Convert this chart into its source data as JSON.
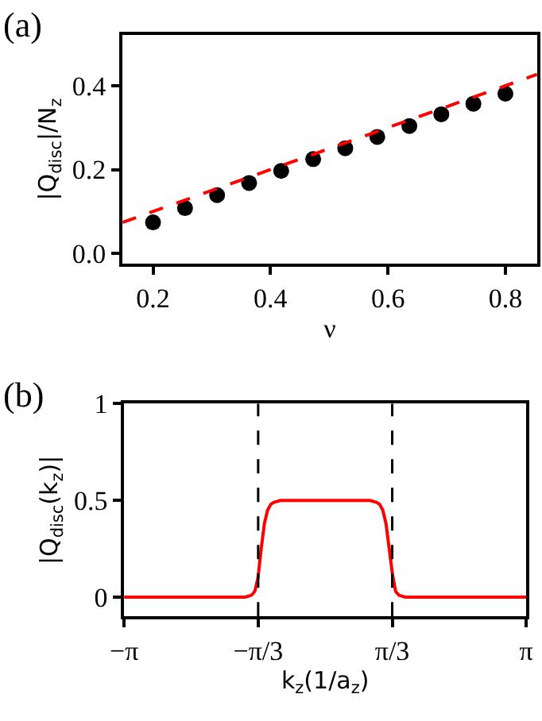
{
  "chart_data": [
    {
      "type": "scatter",
      "title": "(a)",
      "xlabel": "ν",
      "ylabel": "|Q$_{disc}$|/N$_{z}$",
      "xlim": [
        0.148,
        0.854
      ],
      "ylim": [
        -0.025,
        0.522
      ],
      "xticks": [
        0.2,
        0.4,
        0.6,
        0.8
      ],
      "yticks": [
        {
          "value": 0,
          "label": "0.0"
        },
        0.2,
        0.4
      ],
      "x": [
        0.2,
        0.2545,
        0.3091,
        0.3636,
        0.4182,
        0.4727,
        0.5273,
        0.5818,
        0.6364,
        0.6909,
        0.7455,
        0.8
      ],
      "series": [
        {
          "marker": "circle",
          "color": "#000000",
          "values": [
            0.074,
            0.108,
            0.139,
            0.168,
            0.197,
            0.225,
            0.251,
            0.278,
            0.304,
            0.332,
            0.357,
            0.381
          ]
        },
        {
          "type": "line",
          "line_style": "dashed",
          "color": "#ff0000",
          "x": [
            0.148,
            0.854
          ],
          "values": [
            0.074,
            0.427
          ]
        }
      ]
    },
    {
      "type": "line",
      "title": "(b)",
      "xlabel": "k$_{z}$(1/a$_{z}$)",
      "ylabel": "|Q$_{disc}$(k$_{z}$)|",
      "xlim": [
        -3.1416,
        3.1416
      ],
      "ylim": [
        -0.1,
        1
      ],
      "xticks": [
        {
          "value": -3.1416,
          "label": "−π"
        },
        {
          "value": -1.0472,
          "label": "−π/3"
        },
        {
          "value": 1.0472,
          "label": "π/3"
        },
        {
          "value": 3.1416,
          "label": "π"
        }
      ],
      "yticks": [
        0,
        0.5,
        1
      ],
      "x": [
        -3.1416,
        -1.25,
        -1.15,
        -1.1,
        -1.05,
        -1.0,
        -0.95,
        -0.9,
        -0.85,
        -0.8,
        -0.7,
        0,
        0.7,
        0.8,
        0.85,
        0.9,
        0.95,
        1.0,
        1.05,
        1.1,
        1.15,
        1.25,
        3.1416
      ],
      "series": [
        {
          "marker": "none",
          "line_style": "solid",
          "color": "#ff0000",
          "values": [
            0,
            0,
            0.01,
            0.03,
            0.1,
            0.25,
            0.38,
            0.45,
            0.48,
            0.49,
            0.5,
            0.5,
            0.5,
            0.49,
            0.48,
            0.45,
            0.38,
            0.25,
            0.12,
            0.03,
            0.01,
            0,
            0
          ]
        }
      ],
      "ref_lines": [
        {
          "axis": "x",
          "value": -1.0472,
          "color": "#000000",
          "line_style": "dashed"
        },
        {
          "axis": "x",
          "value": 1.0472,
          "color": "#000000",
          "line_style": "dashed"
        }
      ]
    }
  ]
}
